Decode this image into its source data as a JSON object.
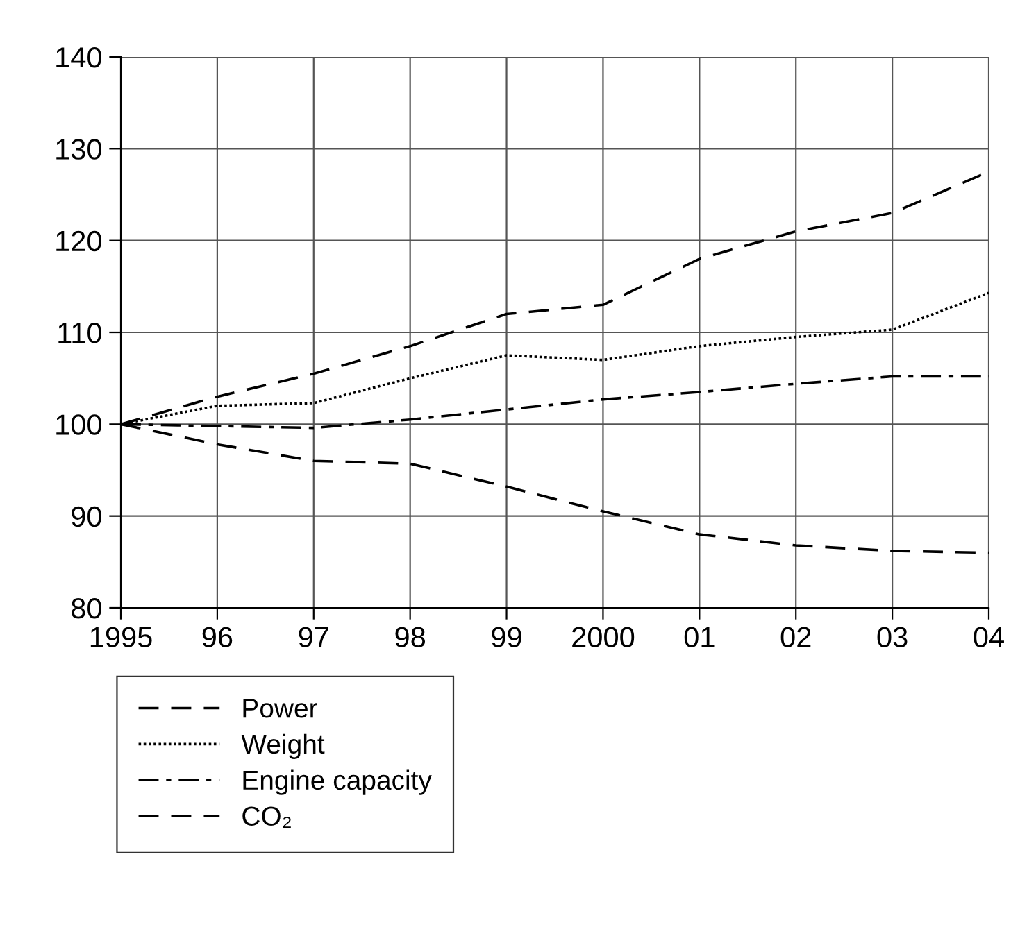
{
  "chart_data": {
    "type": "line",
    "x": [
      1995,
      1996,
      1997,
      1998,
      1999,
      2000,
      2001,
      2002,
      2003,
      2004
    ],
    "series": [
      {
        "name": "Power",
        "color": "#000000",
        "line_style": "dashed",
        "values": [
          100,
          103,
          105.5,
          108.5,
          112,
          113,
          118,
          121,
          123,
          127.5
        ]
      },
      {
        "name": "Weight",
        "color": "#000000",
        "line_style": "dotted",
        "values": [
          100,
          102,
          102.3,
          105,
          107.5,
          107,
          108.5,
          109.5,
          110.3,
          114.3
        ]
      },
      {
        "name": "Engine capacity",
        "color": "#000000",
        "line_style": "dashdot",
        "values": [
          100,
          99.8,
          99.6,
          100.5,
          101.6,
          102.7,
          103.5,
          104.4,
          105.2,
          105.2
        ]
      },
      {
        "name": "CO₂",
        "color": "#000000",
        "line_style": "dashed",
        "values": [
          100,
          97.8,
          96,
          95.7,
          93.2,
          90.5,
          88,
          86.8,
          86.2,
          86
        ]
      }
    ],
    "xlim": [
      1995,
      2004
    ],
    "ylim": [
      80,
      140
    ],
    "xticks": [
      1995,
      {
        "value": 1996,
        "label": "96"
      },
      {
        "value": 1997,
        "label": "97"
      },
      {
        "value": 1998,
        "label": "98"
      },
      {
        "value": 1999,
        "label": "99"
      },
      2000,
      {
        "value": 2001,
        "label": "01"
      },
      {
        "value": 2002,
        "label": "02"
      },
      {
        "value": 2003,
        "label": "03"
      },
      {
        "value": 2004,
        "label": "04"
      }
    ],
    "yticks": [
      80,
      90,
      100,
      110,
      120,
      130,
      140
    ],
    "grid": true,
    "legend": "bottom left"
  }
}
